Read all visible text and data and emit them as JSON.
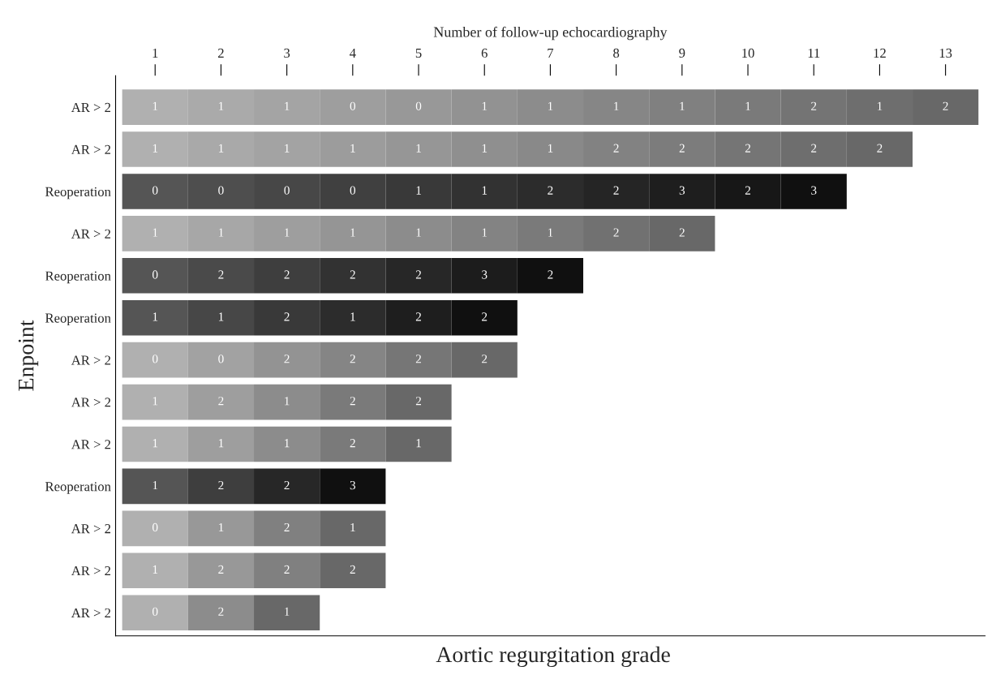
{
  "chart_data": {
    "type": "heatmap",
    "xlabel": "Number of follow-up echocardiography",
    "ylabel": "Enpoint",
    "annotations": [
      "Aortic regurgitation grade"
    ],
    "categories": [
      "1",
      "2",
      "3",
      "4",
      "5",
      "6",
      "7",
      "8",
      "9",
      "10",
      "11",
      "12",
      "13"
    ],
    "y_categories": [
      "AR > 2",
      "AR > 2",
      "Reoperation",
      "AR > 2",
      "Reoperation",
      "Reoperation",
      "AR > 2",
      "AR > 2",
      "AR > 2",
      "Reoperation",
      "AR > 2",
      "AR > 2",
      "AR > 2"
    ],
    "data_labels": true,
    "cells": [
      [
        1,
        1,
        1,
        0,
        0,
        1,
        1,
        1,
        1,
        1,
        2,
        1,
        2
      ],
      [
        1,
        1,
        1,
        1,
        1,
        1,
        1,
        2,
        2,
        2,
        2,
        2,
        null
      ],
      [
        0,
        0,
        0,
        0,
        1,
        1,
        2,
        2,
        3,
        2,
        3,
        null,
        null
      ],
      [
        1,
        1,
        1,
        1,
        1,
        1,
        1,
        2,
        2,
        null,
        null,
        null,
        null
      ],
      [
        0,
        2,
        2,
        2,
        2,
        3,
        2,
        null,
        null,
        null,
        null,
        null,
        null
      ],
      [
        1,
        1,
        2,
        1,
        2,
        2,
        null,
        null,
        null,
        null,
        null,
        null,
        null
      ],
      [
        0,
        0,
        2,
        2,
        2,
        2,
        null,
        null,
        null,
        null,
        null,
        null,
        null
      ],
      [
        1,
        2,
        1,
        2,
        2,
        null,
        null,
        null,
        null,
        null,
        null,
        null,
        null
      ],
      [
        1,
        1,
        1,
        2,
        1,
        null,
        null,
        null,
        null,
        null,
        null,
        null,
        null
      ],
      [
        1,
        2,
        2,
        3,
        null,
        null,
        null,
        null,
        null,
        null,
        null,
        null,
        null
      ],
      [
        0,
        1,
        2,
        1,
        null,
        null,
        null,
        null,
        null,
        null,
        null,
        null,
        null
      ],
      [
        1,
        2,
        2,
        2,
        null,
        null,
        null,
        null,
        null,
        null,
        null,
        null,
        null
      ],
      [
        0,
        2,
        1,
        null,
        null,
        null,
        null,
        null,
        null,
        null,
        null,
        null,
        null
      ]
    ],
    "colors": [
      [
        "#b0b0b0",
        "#aaaaaa",
        "#a4a4a4",
        "#9e9e9e",
        "#989898",
        "#929292",
        "#8c8c8c",
        "#868686",
        "#808080",
        "#7a7a7a",
        "#747474",
        "#6e6e6e",
        "#686868"
      ],
      [
        "#b0b0b0",
        "#a9a9a9",
        "#a3a3a3",
        "#9c9c9c",
        "#969696",
        "#8f8f8f",
        "#898989",
        "#828282",
        "#7c7c7c",
        "#757575",
        "#6e6e6e",
        "#686868",
        null
      ],
      [
        "#555555",
        "#4e4e4e",
        "#474747",
        "#404040",
        "#393939",
        "#323232",
        "#2c2c2c",
        "#252525",
        "#1e1e1e",
        "#171717",
        "#101010",
        null,
        null
      ],
      [
        "#b0b0b0",
        "#a7a7a7",
        "#9e9e9e",
        "#959595",
        "#8c8c8c",
        "#838383",
        "#7a7a7a",
        "#717171",
        "#686868",
        null,
        null,
        null,
        null
      ],
      [
        "#555555",
        "#4a4a4a",
        "#3e3e3e",
        "#323232",
        "#272727",
        "#1c1c1c",
        "#101010",
        null,
        null,
        null,
        null,
        null,
        null
      ],
      [
        "#555555",
        "#474747",
        "#393939",
        "#2c2c2c",
        "#1e1e1e",
        "#101010",
        null,
        null,
        null,
        null,
        null,
        null,
        null
      ],
      [
        "#b0b0b0",
        "#a2a2a2",
        "#939393",
        "#858585",
        "#767676",
        "#686868",
        null,
        null,
        null,
        null,
        null,
        null,
        null
      ],
      [
        "#b0b0b0",
        "#9e9e9e",
        "#8c8c8c",
        "#7a7a7a",
        "#686868",
        null,
        null,
        null,
        null,
        null,
        null,
        null,
        null
      ],
      [
        "#b0b0b0",
        "#9e9e9e",
        "#8c8c8c",
        "#7a7a7a",
        "#686868",
        null,
        null,
        null,
        null,
        null,
        null,
        null,
        null
      ],
      [
        "#555555",
        "#3e3e3e",
        "#272727",
        "#101010",
        null,
        null,
        null,
        null,
        null,
        null,
        null,
        null,
        null
      ],
      [
        "#b0b0b0",
        "#989898",
        "#808080",
        "#686868",
        null,
        null,
        null,
        null,
        null,
        null,
        null,
        null,
        null
      ],
      [
        "#b0b0b0",
        "#989898",
        "#808080",
        "#686868",
        null,
        null,
        null,
        null,
        null,
        null,
        null,
        null,
        null
      ],
      [
        "#b0b0b0",
        "#8c8c8c",
        "#686868",
        null,
        null,
        null,
        null,
        null,
        null,
        null,
        null,
        null,
        null
      ]
    ]
  }
}
